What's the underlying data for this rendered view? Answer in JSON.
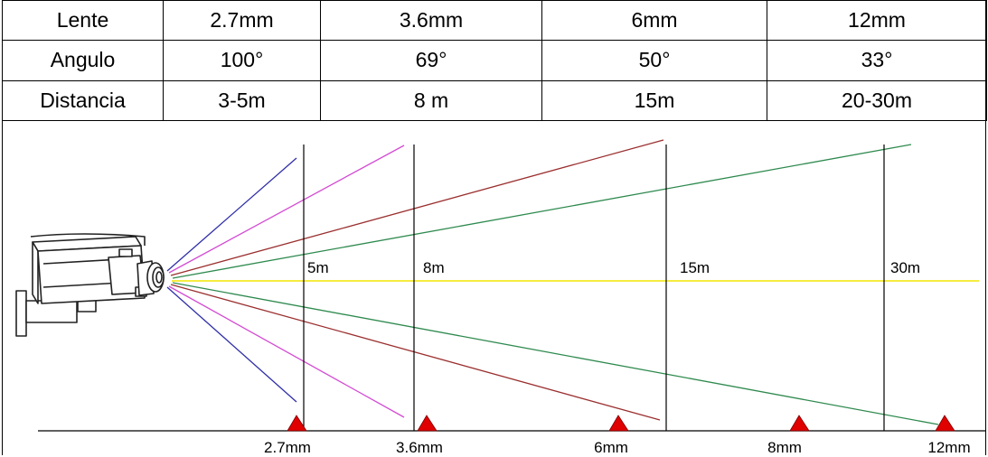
{
  "table": {
    "rows": [
      {
        "header": "Lente",
        "cells": [
          "2.7mm",
          "3.6mm",
          "6mm",
          "12mm"
        ]
      },
      {
        "header": "Angulo",
        "cells": [
          "100°",
          "69°",
          "50°",
          "33°"
        ]
      },
      {
        "header": "Distancia",
        "cells": [
          "3-5m",
          "8 m",
          "15m",
          "20-30m"
        ]
      }
    ]
  },
  "diagram": {
    "distance_labels": [
      "5m",
      "8m",
      "15m",
      "30m"
    ],
    "lens_markers": [
      "2.7mm",
      "3.6mm",
      "6mm",
      "8mm",
      "12mm"
    ],
    "beam_colors": {
      "lens_2_7mm": "#2f2fa8",
      "lens_3_6mm": "#d34cd3",
      "lens_6mm": "#9b2f2f",
      "lens_12mm": "#2f8a4f",
      "center_axis": "#f2e600"
    },
    "marker_color": "#e00000",
    "icons": {
      "camera": "cctv-camera-icon",
      "marker": "warning-triangle-icon"
    }
  }
}
